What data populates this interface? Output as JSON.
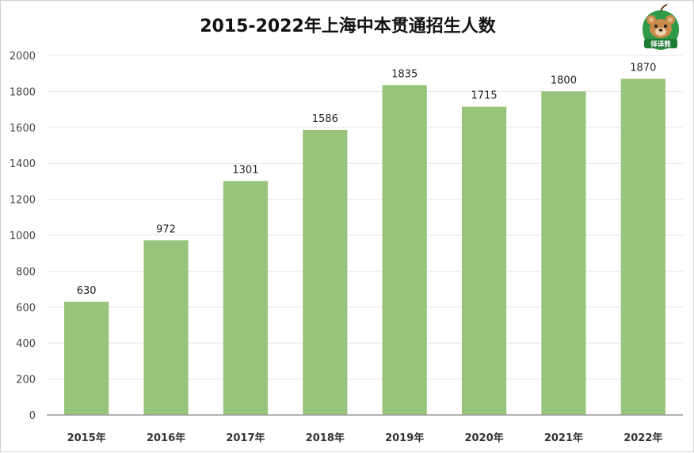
{
  "chart_data": {
    "type": "bar",
    "title": "2015-2022年上海中本贯通招生人数",
    "categories": [
      "2015年",
      "2016年",
      "2017年",
      "2018年",
      "2019年",
      "2020年",
      "2021年",
      "2022年"
    ],
    "values": [
      630,
      972,
      1301,
      1586,
      1835,
      1715,
      1800,
      1870
    ],
    "ylim": [
      0,
      2000
    ],
    "yticks": [
      0,
      200,
      400,
      600,
      800,
      1000,
      1200,
      1400,
      1600,
      1800,
      2000
    ],
    "xlabel": "",
    "ylabel": "",
    "grid": true,
    "legend": "none",
    "bar_color": "#97c47a",
    "grid_color": "#e6e6e6",
    "axis_color": "#9a9a9a"
  },
  "logo": {
    "icon": "bear-mascot-icon",
    "text": "择译熊",
    "colors": {
      "green": "#1f8a3b",
      "bear": "#c98a4a"
    }
  }
}
